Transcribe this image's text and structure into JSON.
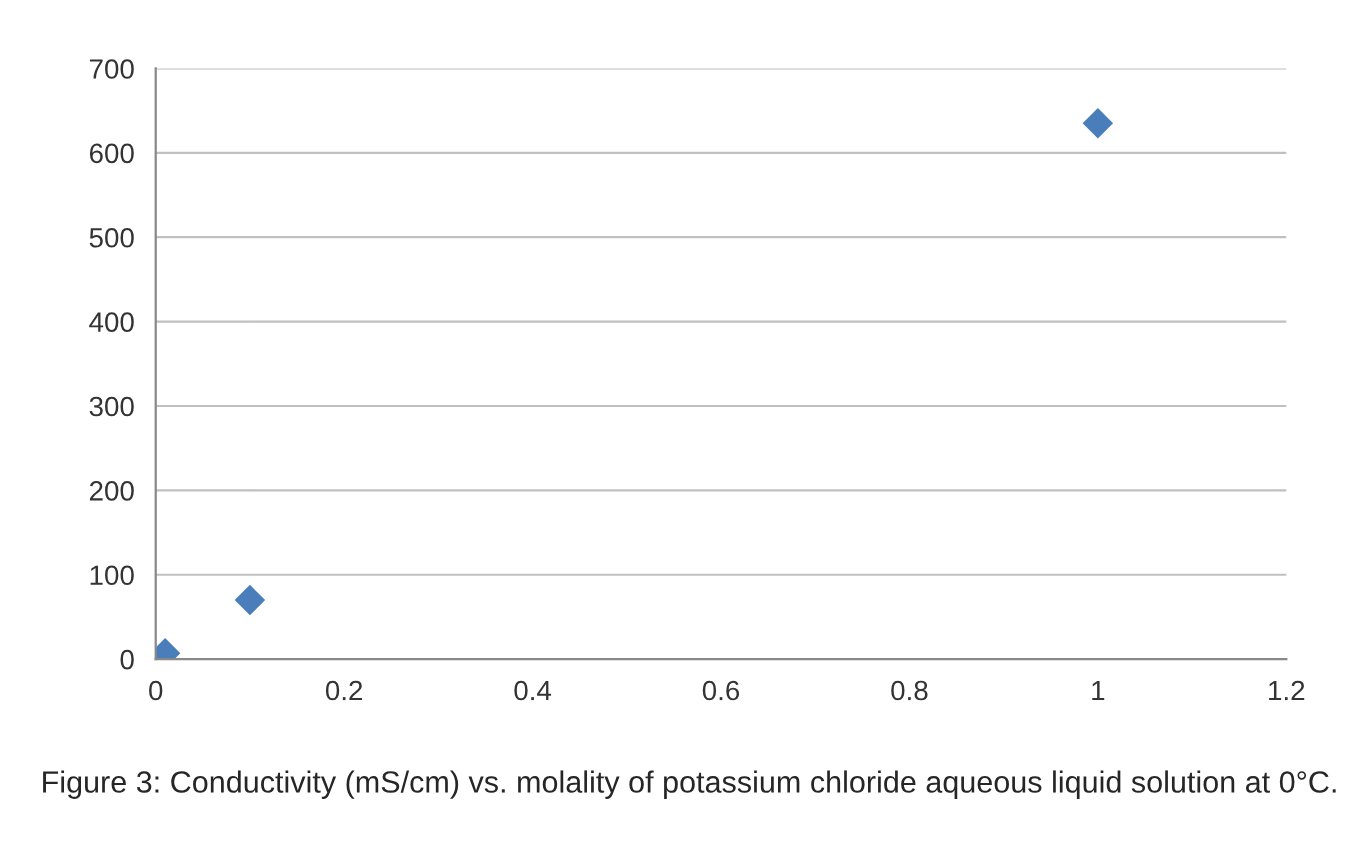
{
  "chart_data": {
    "type": "scatter",
    "x": [
      0.01,
      0.1,
      1
    ],
    "series": [
      {
        "color": "#4a7ebb",
        "values": [
          7,
          70,
          635
        ]
      }
    ],
    "xlim": [
      0,
      1.2
    ],
    "xticks": [
      0,
      0.2,
      0.4,
      0.6,
      0.8,
      1,
      1.2
    ],
    "ylim": [
      0,
      700
    ],
    "yticks": [
      0,
      100,
      200,
      300,
      400,
      500,
      600,
      700
    ],
    "grid": "y",
    "marker": "diamond",
    "legend": false,
    "annotations": [
      "Figure 3: Conductivity (mS/cm) vs. molality of potassium chloride aqueous liquid solution at 0°C."
    ]
  }
}
